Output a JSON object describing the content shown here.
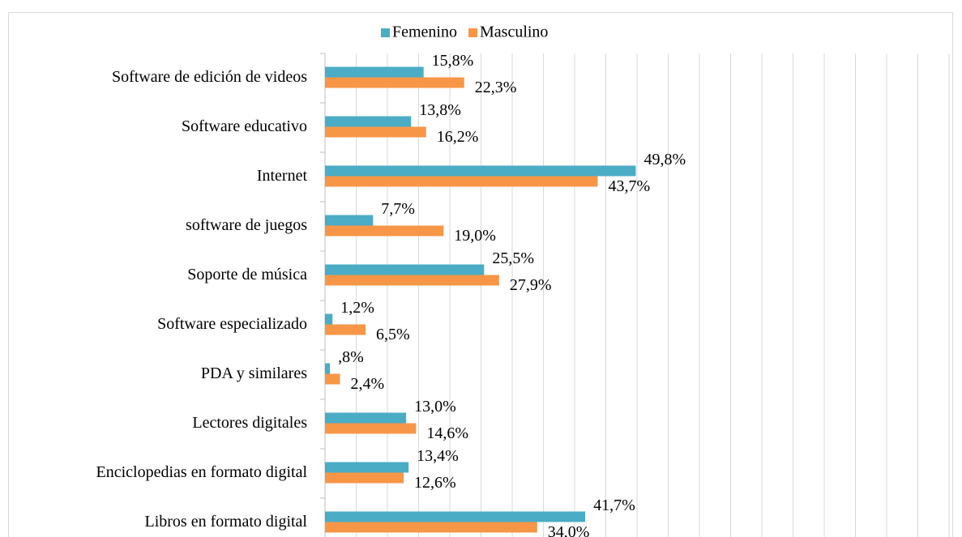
{
  "chart_data": {
    "type": "hbar",
    "categories": [
      "Software de edición de videos",
      "Software educativo",
      "Internet",
      "software de juegos",
      "Soporte de música",
      "Software especializado",
      "PDA y similares",
      "Lectores digitales",
      "Enciclopedias en formato digital",
      "Libros en formato digital"
    ],
    "series": [
      {
        "name": "Femenino",
        "color": "#4bacc6",
        "values": [
          15.8,
          13.8,
          49.8,
          7.7,
          25.5,
          1.2,
          0.8,
          13.0,
          13.4,
          41.7
        ],
        "value_labels": [
          "15,8%",
          "13,8%",
          "49,8%",
          "7,7%",
          "25,5%",
          "1,2%",
          ",8%",
          "13,0%",
          "13,4%",
          "41,7%"
        ]
      },
      {
        "name": "Masculino",
        "color": "#f79646",
        "values": [
          22.3,
          16.2,
          43.7,
          19.0,
          27.9,
          6.5,
          2.4,
          14.6,
          12.6,
          34.0
        ],
        "value_labels": [
          "22,3%",
          "16,2%",
          "43,7%",
          "19,0%",
          "27,9%",
          "6,5%",
          "2,4%",
          "14,6%",
          "12,6%",
          "34,0%"
        ]
      }
    ],
    "xlim": [
      0,
      100
    ],
    "xticks": [
      0,
      5,
      10,
      15,
      20,
      25,
      30,
      35,
      40,
      45,
      50,
      55,
      60,
      65,
      70,
      75,
      80,
      85,
      90,
      95,
      100
    ],
    "grid": true,
    "legend": "top"
  }
}
